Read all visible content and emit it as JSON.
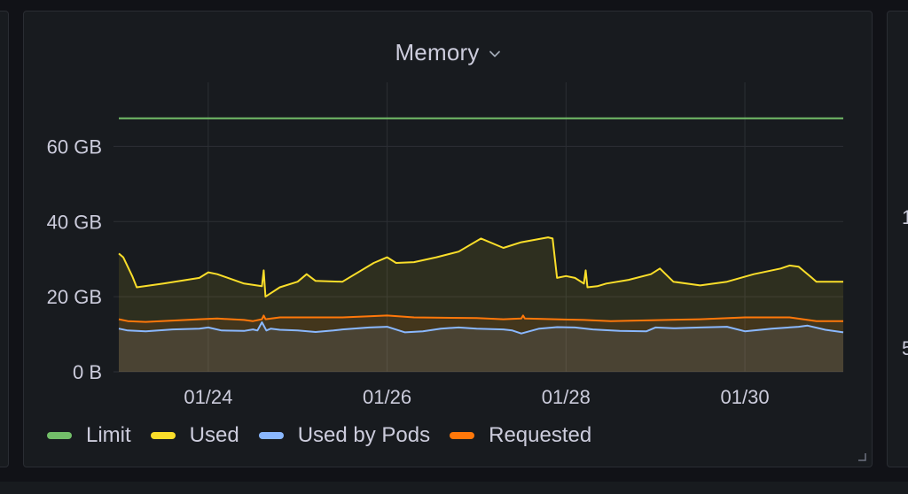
{
  "panel": {
    "title": "Memory"
  },
  "right_panel": {
    "partial_labels": [
      "1",
      "5"
    ]
  },
  "legend": [
    {
      "label": "Limit",
      "color": "#73bf69"
    },
    {
      "label": "Used",
      "color": "#fade2a"
    },
    {
      "label": "Used by Pods",
      "color": "#8ab8ff"
    },
    {
      "label": "Requested",
      "color": "#ff780a"
    }
  ],
  "chart_data": {
    "type": "area",
    "title": "Memory",
    "x_ticks": [
      "01/24",
      "01/26",
      "01/28",
      "01/30"
    ],
    "x_tick_values": [
      1,
      3,
      5,
      7
    ],
    "y_ticks": [
      "0 B",
      "20 GB",
      "40 GB",
      "60 GB"
    ],
    "y_tick_values": [
      0,
      20,
      40,
      60
    ],
    "ylim": [
      0,
      70
    ],
    "xlim": [
      0.0,
      8.1
    ],
    "unit": "GB",
    "grid": true,
    "legend_position": "bottom-left",
    "series": [
      {
        "name": "Limit",
        "color": "#73bf69",
        "fill": false,
        "x": [
          0.0,
          8.1
        ],
        "y": [
          67.5,
          67.5
        ]
      },
      {
        "name": "Used",
        "color": "#fade2a",
        "fill": true,
        "x": [
          0.0,
          0.05,
          0.15,
          0.2,
          0.5,
          0.9,
          1.0,
          1.1,
          1.4,
          1.6,
          1.62,
          1.64,
          1.8,
          2.0,
          2.1,
          2.2,
          2.5,
          2.85,
          3.0,
          3.1,
          3.3,
          3.55,
          3.8,
          4.05,
          4.3,
          4.5,
          4.8,
          4.85,
          4.9,
          5.0,
          5.1,
          5.2,
          5.22,
          5.24,
          5.35,
          5.45,
          5.7,
          5.95,
          6.05,
          6.2,
          6.5,
          6.8,
          7.1,
          7.4,
          7.5,
          7.6,
          7.65,
          7.75,
          7.8,
          8.1
        ],
        "y": [
          31.5,
          30.5,
          25.5,
          22.5,
          23.5,
          25.0,
          26.5,
          26.0,
          23.5,
          22.8,
          27.0,
          20.0,
          22.5,
          24.0,
          26.0,
          24.2,
          24.0,
          29.0,
          30.5,
          29.0,
          29.2,
          30.5,
          32.0,
          35.5,
          33.0,
          34.5,
          35.8,
          35.5,
          25.0,
          25.5,
          25.0,
          23.5,
          27.0,
          22.5,
          22.8,
          23.5,
          24.5,
          26.0,
          27.5,
          24.0,
          23.0,
          24.0,
          26.0,
          27.5,
          28.3,
          28.0,
          27.0,
          25.0,
          24.0,
          24.0
        ]
      },
      {
        "name": "Requested",
        "color": "#ff780a",
        "fill": true,
        "x": [
          0.0,
          0.1,
          0.3,
          0.9,
          1.1,
          1.4,
          1.5,
          1.6,
          1.62,
          1.64,
          1.8,
          2.5,
          2.8,
          3.0,
          3.3,
          4.0,
          4.3,
          4.5,
          4.52,
          4.54,
          5.2,
          5.5,
          6.5,
          7.0,
          7.5,
          7.8,
          8.1
        ],
        "y": [
          14.0,
          13.5,
          13.3,
          14.0,
          14.2,
          13.8,
          13.5,
          14.0,
          15.0,
          14.0,
          14.5,
          14.5,
          14.8,
          15.0,
          14.5,
          14.3,
          14.0,
          14.2,
          15.0,
          14.2,
          13.8,
          13.5,
          14.0,
          14.5,
          14.5,
          13.5,
          13.5
        ]
      },
      {
        "name": "Used by Pods",
        "color": "#8ab8ff",
        "fill": true,
        "x": [
          0.0,
          0.1,
          0.3,
          0.6,
          0.9,
          1.0,
          1.15,
          1.4,
          1.5,
          1.55,
          1.6,
          1.65,
          1.7,
          1.8,
          2.0,
          2.2,
          2.4,
          2.5,
          2.8,
          3.0,
          3.2,
          3.4,
          3.6,
          3.8,
          4.0,
          4.3,
          4.4,
          4.5,
          4.7,
          4.9,
          5.1,
          5.3,
          5.6,
          5.9,
          6.0,
          6.2,
          6.5,
          6.8,
          7.0,
          7.3,
          7.6,
          7.7,
          7.9,
          8.1
        ],
        "y": [
          11.5,
          11.0,
          10.8,
          11.3,
          11.5,
          11.8,
          11.0,
          10.9,
          11.3,
          11.0,
          13.2,
          11.0,
          11.5,
          11.2,
          11.0,
          10.6,
          11.0,
          11.3,
          11.8,
          12.0,
          10.5,
          10.8,
          11.5,
          11.8,
          11.5,
          11.3,
          11.0,
          10.2,
          11.5,
          11.9,
          11.8,
          11.3,
          10.9,
          10.8,
          11.8,
          11.6,
          11.8,
          12.0,
          10.8,
          11.5,
          12.0,
          12.3,
          11.2,
          10.5
        ]
      }
    ]
  }
}
